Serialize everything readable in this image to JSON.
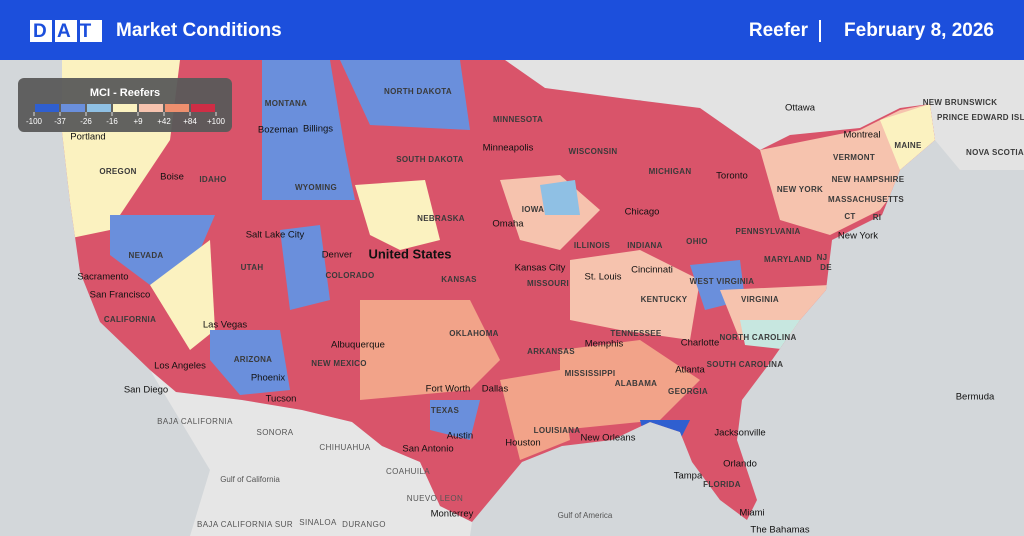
{
  "header": {
    "logo": "DAT",
    "title": "Market Conditions",
    "equipment": "Reefer",
    "date": "February 8, 2026"
  },
  "legend": {
    "title": "MCI - Reefers",
    "ticks": [
      {
        "value": -100,
        "label": "-100"
      },
      {
        "value": -37,
        "label": "-37"
      },
      {
        "value": -26,
        "label": "-26"
      },
      {
        "value": -16,
        "label": "-16"
      },
      {
        "value": 9,
        "label": "+9"
      },
      {
        "value": 42,
        "label": "+42"
      },
      {
        "value": 84,
        "label": "+84"
      },
      {
        "value": 100,
        "label": "+100"
      }
    ],
    "colors": [
      "#2f5fd0",
      "#6a8fdc",
      "#8fc0e4",
      "#fbf2c0",
      "#f6c3ae",
      "#ee8f6e",
      "#cf2d45"
    ]
  },
  "labels": [
    "NORTH DAKOTA",
    "MONTANA",
    "MINNESOTA",
    "Minneapolis",
    "SOUTH DAKOTA",
    "WISCONSIN",
    "MICHIGAN",
    "OREGON",
    "IDAHO",
    "WYOMING",
    "Portland",
    "Boise",
    "Billings",
    "Bozeman",
    "Toronto",
    "Ottawa",
    "Montreal",
    "NEW BRUNSWICK",
    "PRINCE EDWARD ISLAND",
    "NOVA SCOTIA",
    "MAINE",
    "VERMONT",
    "NEW HAMPSHIRE",
    "MASSACHUSETTS",
    "CT",
    "RI",
    "NEW YORK",
    "New York",
    "PENNSYLVANIA",
    "NJ",
    "MARYLAND",
    "DE",
    "OHIO",
    "INDIANA",
    "ILLINOIS",
    "Chicago",
    "IOWA",
    "NEBRASKA",
    "Omaha",
    "United States",
    "Salt Lake City",
    "Denver",
    "COLORADO",
    "UTAH",
    "NEVADA",
    "Sacramento",
    "San Francisco",
    "CALIFORNIA",
    "Las Vegas",
    "KANSAS",
    "Kansas City",
    "MISSOURI",
    "St. Louis",
    "Cincinnati",
    "WEST VIRGINIA",
    "KENTUCKY",
    "VIRGINIA",
    "OKLAHOMA",
    "TENNESSEE",
    "NORTH CAROLINA",
    "Charlotte",
    "Memphis",
    "ARKANSAS",
    "Albuquerque",
    "NEW MEXICO",
    "ARIZONA",
    "Los Angeles",
    "Phoenix",
    "Tucson",
    "San Diego",
    "MISSISSIPPI",
    "ALABAMA",
    "Atlanta",
    "SOUTH CAROLINA",
    "GEORGIA",
    "Fort Worth",
    "Dallas",
    "TEXAS",
    "Austin",
    "Houston",
    "LOUISIANA",
    "New Orleans",
    "San Antonio",
    "Jacksonville",
    "Orlando",
    "Tampa",
    "FLORIDA",
    "Miami",
    "The Bahamas",
    "Bermuda",
    "BAJA CALIFORNIA",
    "SONORA",
    "CHIHUAHUA",
    "COAHUILA",
    "NUEVO LEON",
    "Monterrey",
    "Gulf of California",
    "BAJA CALIFORNIA SUR",
    "SINALOA",
    "DURANGO",
    "Gulf of America"
  ]
}
